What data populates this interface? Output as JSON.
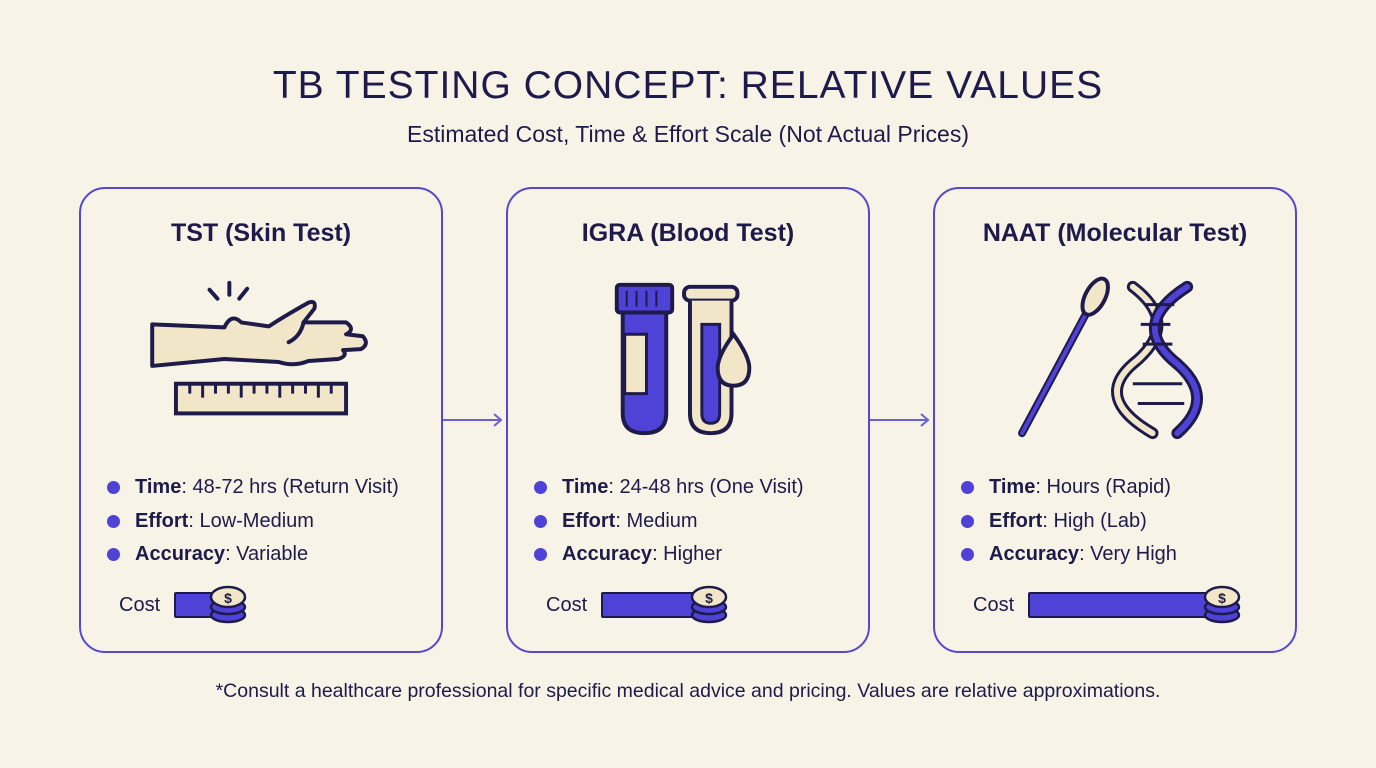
{
  "header": {
    "title": "TB TESTING CONCEPT: RELATIVE VALUES",
    "subtitle": "Estimated Cost, Time & Effort Scale (Not Actual Prices)"
  },
  "colors": {
    "background": "#f7f3e7",
    "accent": "#4f42d6",
    "text": "#1e1b4b",
    "illustration_fill": "#f2e6c8"
  },
  "cards": [
    {
      "title": "TST (Skin Test)",
      "icon": "arm-with-ruler-icon",
      "time_label": "Time",
      "time": ": 48-72 hrs (Return Visit)",
      "effort_label": "Effort",
      "effort": ": Low-Medium",
      "accuracy_label": "Accuracy",
      "accuracy": ": Variable",
      "cost_label": "Cost",
      "cost_level": 0.25
    },
    {
      "title": "IGRA (Blood Test)",
      "icon": "blood-tubes-icon",
      "time_label": "Time",
      "time": ": 24-48 hrs (One Visit)",
      "effort_label": "Effort",
      "effort": ": Medium",
      "accuracy_label": "Accuracy",
      "accuracy": ": Higher",
      "cost_label": "Cost",
      "cost_level": 0.5
    },
    {
      "title": "NAAT (Molecular Test)",
      "icon": "swab-dna-icon",
      "time_label": "Time",
      "time": ": Hours (Rapid)",
      "effort_label": "Effort",
      "effort": ": High (Lab)",
      "accuracy_label": "Accuracy",
      "accuracy": ": Very High",
      "cost_label": "Cost",
      "cost_level": 0.9
    }
  ],
  "footer": "*Consult a healthcare professional for specific medical advice and pricing. Values are relative approximations."
}
